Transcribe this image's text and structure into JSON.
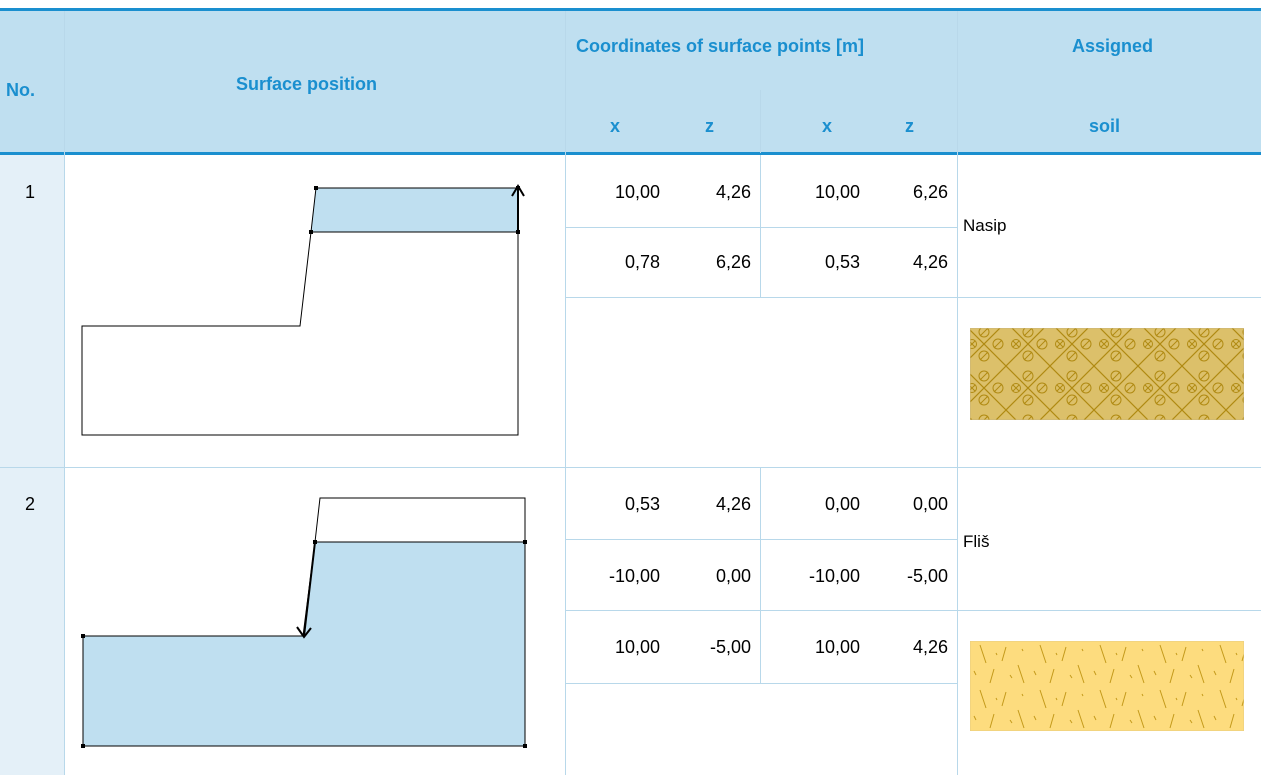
{
  "header": {
    "no": "No.",
    "surface_position": "Surface position",
    "coordinates": "Coordinates of surface points [m]",
    "assigned": "Assigned",
    "soil": "soil",
    "x1": "x",
    "z1": "z",
    "x2": "x",
    "z2": "z"
  },
  "rows": [
    {
      "no": "1",
      "soil_name": "Nasip",
      "soil_pattern": "gravel-diamond-pattern",
      "soil_color": "#dcc06a",
      "points": [
        [
          "10,00",
          "4,26",
          "10,00",
          "6,26"
        ],
        [
          "0,78",
          "6,26",
          "0,53",
          "4,26"
        ]
      ]
    },
    {
      "no": "2",
      "soil_name": "Fliš",
      "soil_pattern": "flysch-dash-pattern",
      "soil_color": "#fddc7e",
      "points": [
        [
          "0,53",
          "4,26",
          "0,00",
          "0,00"
        ],
        [
          "-10,00",
          "0,00",
          "-10,00",
          "-5,00"
        ],
        [
          "10,00",
          "-5,00",
          "10,00",
          "4,26"
        ]
      ]
    }
  ],
  "colors": {
    "header_bg": "#bfdff0",
    "header_text": "#1a8fcf",
    "accent_line": "#1a8fcf",
    "highlight_fill": "#bfdff0"
  }
}
